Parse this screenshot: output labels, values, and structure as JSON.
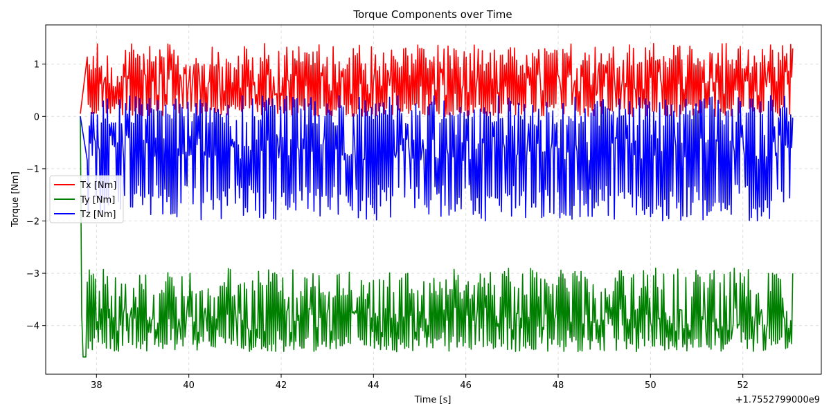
{
  "chart_data": {
    "type": "line",
    "title": "Torque Components over Time",
    "xlabel": "Time [s]",
    "ylabel": "Torque [Nm]",
    "x_offset_label": "+1.7552799000e9",
    "xlim": [
      36.9,
      53.7
    ],
    "ylim": [
      -4.93,
      1.75
    ],
    "x_ticks": [
      38,
      40,
      42,
      44,
      46,
      48,
      50,
      52
    ],
    "y_ticks": [
      1,
      0,
      -1,
      -2,
      -3,
      -4
    ],
    "grid": true,
    "legend_position": "center-left",
    "series": [
      {
        "name": "Tx [Nm]",
        "color": "#ff0000",
        "x_range": [
          37.65,
          53.08
        ],
        "start_value": 0.05,
        "baseline": 0.65,
        "high_range": [
          0.9,
          1.4
        ],
        "low_range": [
          0.0,
          0.25
        ],
        "samples": 700
      },
      {
        "name": "Ty [Nm]",
        "color": "#008000",
        "x_range": [
          37.65,
          53.08
        ],
        "start_value": 0.0,
        "settle_value": -4.6,
        "baseline": -3.9,
        "high_range": [
          -3.5,
          -2.9
        ],
        "low_range": [
          -4.5,
          -4.2
        ],
        "samples": 700
      },
      {
        "name": "Tz [Nm]",
        "color": "#0000ff",
        "x_range": [
          37.65,
          53.08
        ],
        "start_value": 0.0,
        "baseline": -0.6,
        "high_range": [
          -0.2,
          0.4
        ],
        "low_range": [
          -2.0,
          -1.3
        ],
        "samples": 700
      }
    ]
  }
}
